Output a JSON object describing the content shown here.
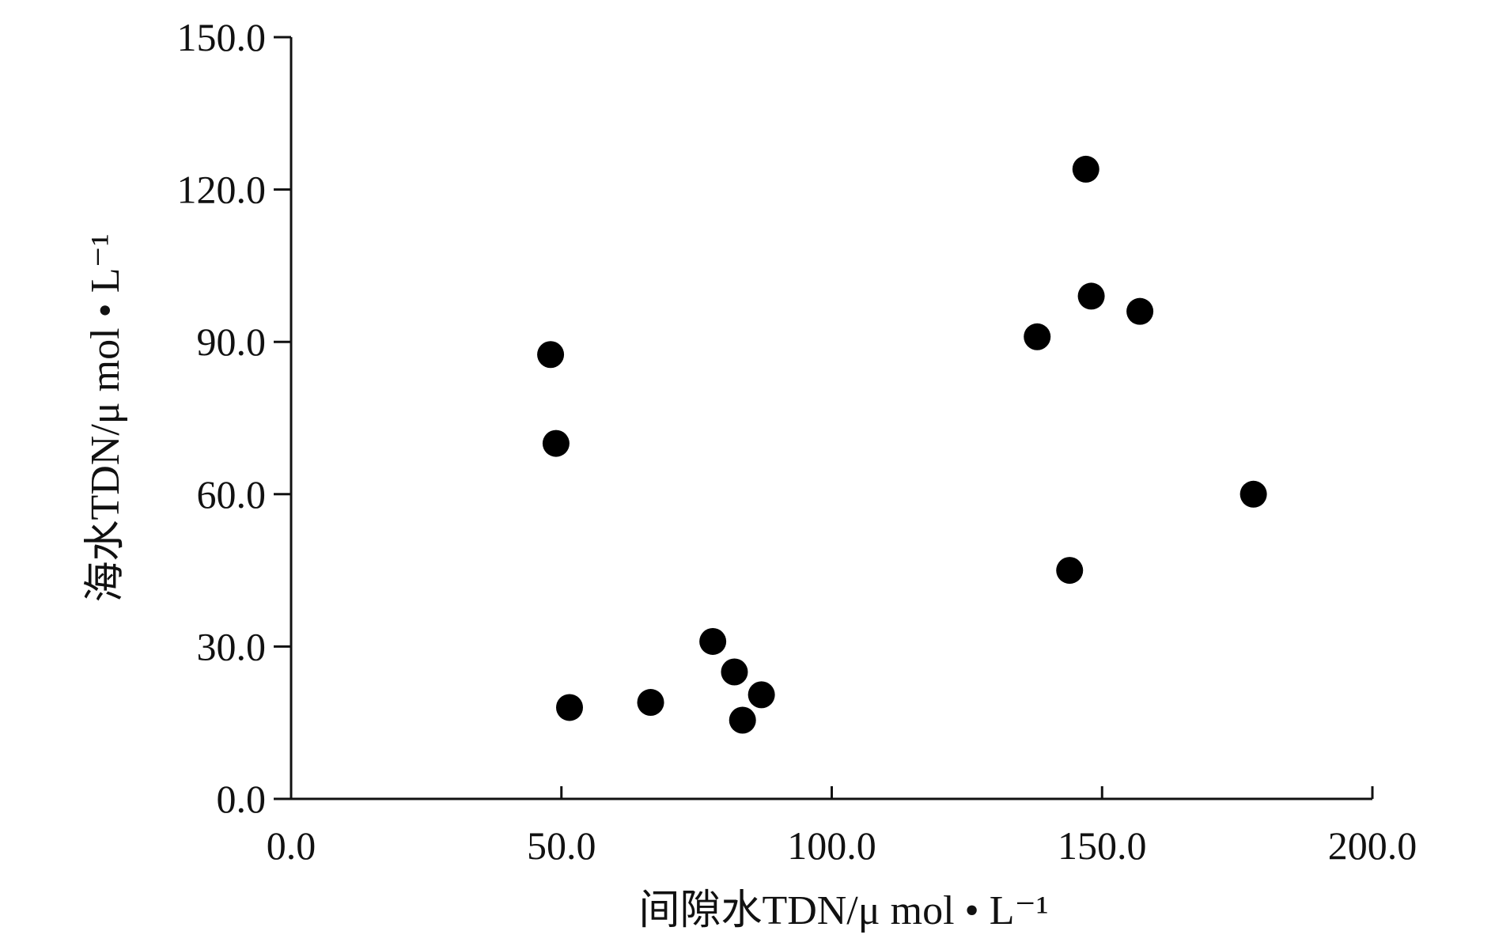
{
  "chart_data": {
    "type": "scatter",
    "title": "",
    "xlabel": "间隙水TDN/μ mol • L⁻¹",
    "ylabel": "海水TDN/μ mol • L⁻¹",
    "xlim": [
      0,
      200
    ],
    "ylim": [
      0,
      150
    ],
    "xticks": [
      "0.0",
      "50.0",
      "100.0",
      "150.0",
      "200.0"
    ],
    "yticks": [
      "0.0",
      "30.0",
      "60.0",
      "90.0",
      "120.0",
      "150.0"
    ],
    "grid": false,
    "legend": "none",
    "marker_color": "#000000",
    "points": [
      {
        "x": 48.0,
        "y": 87.5
      },
      {
        "x": 49.0,
        "y": 70.0
      },
      {
        "x": 51.5,
        "y": 18.0
      },
      {
        "x": 66.5,
        "y": 19.0
      },
      {
        "x": 78.0,
        "y": 31.0
      },
      {
        "x": 82.0,
        "y": 25.0
      },
      {
        "x": 83.5,
        "y": 15.5
      },
      {
        "x": 87.0,
        "y": 20.5
      },
      {
        "x": 138.0,
        "y": 91.0
      },
      {
        "x": 144.0,
        "y": 45.0
      },
      {
        "x": 147.0,
        "y": 124.0
      },
      {
        "x": 148.0,
        "y": 99.0
      },
      {
        "x": 157.0,
        "y": 96.0
      },
      {
        "x": 178.0,
        "y": 60.0
      }
    ]
  }
}
